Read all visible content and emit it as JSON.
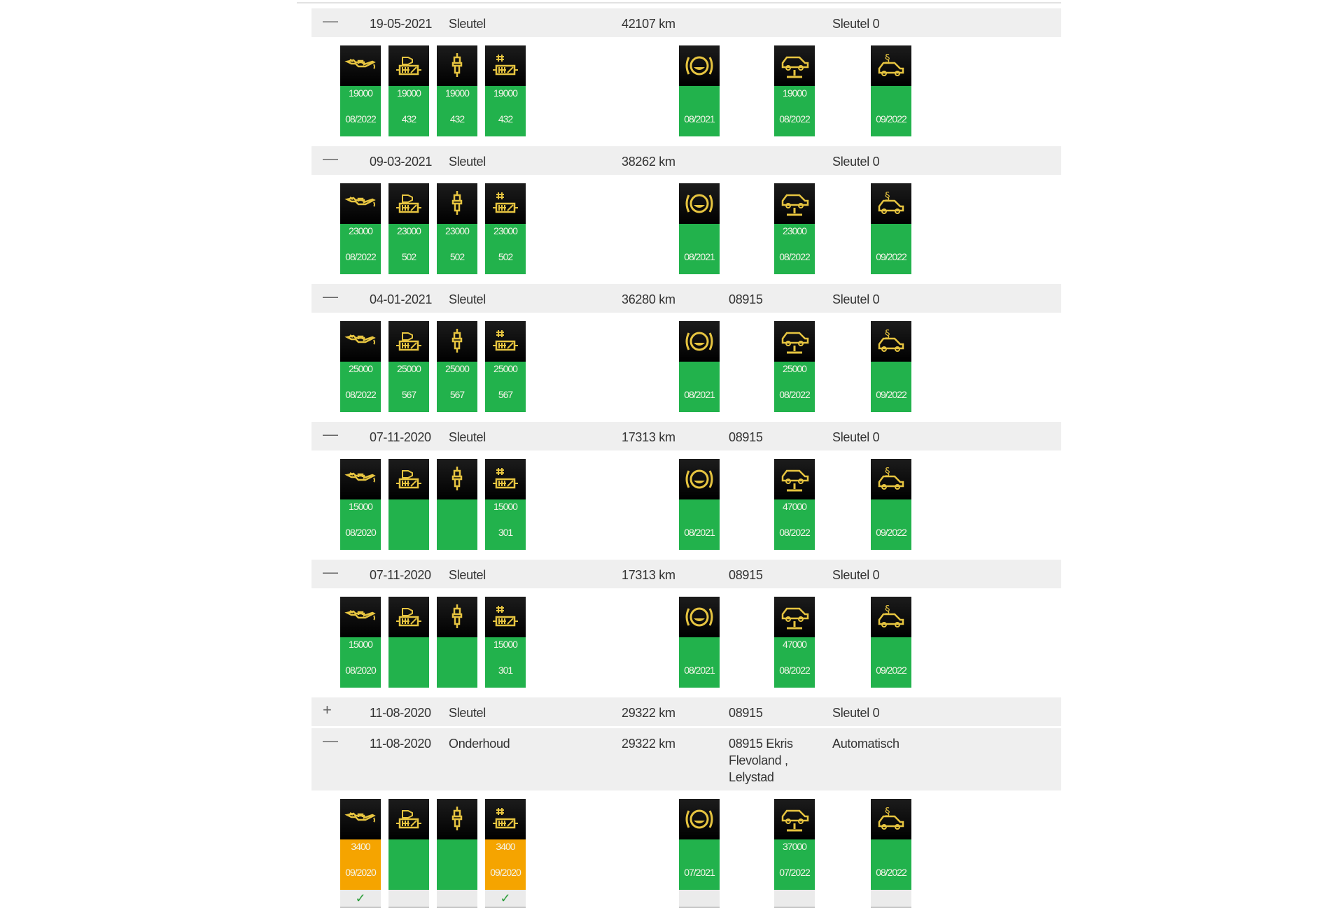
{
  "colors": {
    "ok": "#22b24c",
    "warn": "#f5a400",
    "icon": "#e6c440",
    "header_bg": "#efefef"
  },
  "columns_icons": [
    "oil-can-icon",
    "air-filter-icon",
    "spark-plug-icon",
    "fuel-filter-icon",
    "brake-icon",
    "car-lift-icon",
    "legal-inspection-icon"
  ],
  "rows": [
    {
      "toggle": "—",
      "date": "19-05-2021",
      "type": "Sleutel",
      "km": "42107 km",
      "code": "",
      "key": "Sleutel 0",
      "cards": [
        [
          "19000",
          "08/2022"
        ],
        [
          "19000",
          "432"
        ],
        [
          "19000",
          "432"
        ],
        [
          "19000",
          "432"
        ],
        [
          "",
          "08/2021"
        ],
        [
          "19000",
          "08/2022"
        ],
        [
          "",
          "09/2022"
        ]
      ]
    },
    {
      "toggle": "—",
      "date": "09-03-2021",
      "type": "Sleutel",
      "km": "38262 km",
      "code": "",
      "key": "Sleutel 0",
      "cards": [
        [
          "23000",
          "08/2022"
        ],
        [
          "23000",
          "502"
        ],
        [
          "23000",
          "502"
        ],
        [
          "23000",
          "502"
        ],
        [
          "",
          "08/2021"
        ],
        [
          "23000",
          "08/2022"
        ],
        [
          "",
          "09/2022"
        ]
      ]
    },
    {
      "toggle": "—",
      "date": "04-01-2021",
      "type": "Sleutel",
      "km": "36280 km",
      "code": "08915",
      "key": "Sleutel 0",
      "cards": [
        [
          "25000",
          "08/2022"
        ],
        [
          "25000",
          "567"
        ],
        [
          "25000",
          "567"
        ],
        [
          "25000",
          "567"
        ],
        [
          "",
          "08/2021"
        ],
        [
          "25000",
          "08/2022"
        ],
        [
          "",
          "09/2022"
        ]
      ]
    },
    {
      "toggle": "—",
      "date": "07-11-2020",
      "type": "Sleutel",
      "km": "17313 km",
      "code": "08915",
      "key": "Sleutel 0",
      "cards": [
        [
          "15000",
          "08/2020"
        ],
        [
          "",
          ""
        ],
        [
          "",
          ""
        ],
        [
          "15000",
          "301"
        ],
        [
          "",
          "08/2021"
        ],
        [
          "47000",
          "08/2022"
        ],
        [
          "",
          "09/2022"
        ]
      ]
    },
    {
      "toggle": "—",
      "date": "07-11-2020",
      "type": "Sleutel",
      "km": "17313 km",
      "code": "08915",
      "key": "Sleutel 0",
      "cards": [
        [
          "15000",
          "08/2020"
        ],
        [
          "",
          ""
        ],
        [
          "",
          ""
        ],
        [
          "15000",
          "301"
        ],
        [
          "",
          "08/2021"
        ],
        [
          "47000",
          "08/2022"
        ],
        [
          "",
          "09/2022"
        ]
      ]
    },
    {
      "toggle": "+",
      "date": "11-08-2020",
      "type": "Sleutel",
      "km": "29322 km",
      "code": "08915",
      "key": "Sleutel 0",
      "cards": null
    },
    {
      "toggle": "—",
      "date": "11-08-2020",
      "type": "Onderhoud",
      "km": "29322 km",
      "code": "08915 Ekris Flevoland , Lelystad",
      "key": "Automatisch",
      "cards": [
        [
          "3400",
          "09/2020",
          "warn",
          "✓"
        ],
        [
          "",
          "",
          "ok",
          ""
        ],
        [
          "",
          "",
          "ok",
          ""
        ],
        [
          "3400",
          "09/2020",
          "warn",
          "✓"
        ],
        [
          "",
          "07/2021",
          "ok",
          ""
        ],
        [
          "37000",
          "07/2022",
          "ok",
          ""
        ],
        [
          "",
          "08/2022",
          "ok",
          ""
        ]
      ]
    }
  ]
}
